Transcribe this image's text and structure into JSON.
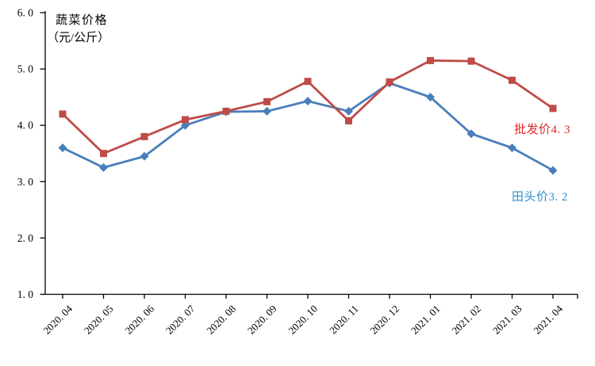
{
  "chart_data": {
    "type": "line",
    "title": "蔬菜价格（元/公斤）",
    "title_lines": [
      "蔬菜价格",
      "（元/公斤）"
    ],
    "xlabel": "",
    "ylabel": "蔬菜价格（元/公斤）",
    "categories": [
      "2020.04",
      "2020.05",
      "2020.06",
      "2020.07",
      "2020.08",
      "2020.09",
      "2020.10",
      "2020.11",
      "2020.12",
      "2021.01",
      "2021.02",
      "2021.03",
      "2021.04"
    ],
    "x_labels": [
      "2020. 04",
      "2020. 05",
      "2020. 06",
      "2020. 07",
      "2020. 08",
      "2020. 09",
      "2020. 10",
      "2020. 11",
      "2020. 12",
      "2021. 01",
      "2021. 02",
      "2021. 03",
      "2021. 04"
    ],
    "ylim": [
      1.0,
      6.0
    ],
    "ytick_values": [
      1.0,
      2.0,
      3.0,
      4.0,
      5.0,
      6.0
    ],
    "ytick_labels": [
      "1. 0",
      "2. 0",
      "3. 0",
      "4. 0",
      "5. 0",
      "6. 0"
    ],
    "grid": false,
    "legend_position": "annotations-at-line-end",
    "series": [
      {
        "name": "批发价",
        "marker": "square",
        "color": "#bf4b48",
        "label_color": "#e02525",
        "end_label": "批发价4. 3",
        "end_value": 4.3,
        "values": [
          4.2,
          3.5,
          3.8,
          4.1,
          4.25,
          4.42,
          4.78,
          4.08,
          4.77,
          5.15,
          5.14,
          4.8,
          4.3
        ]
      },
      {
        "name": "田头价",
        "marker": "diamond",
        "color": "#4a7ebb",
        "label_color": "#2e8fd0",
        "end_label": "田头价3. 2",
        "end_value": 3.2,
        "values": [
          3.6,
          3.25,
          3.45,
          4.0,
          4.24,
          4.25,
          4.43,
          4.25,
          4.75,
          4.5,
          3.85,
          3.6,
          3.2
        ]
      }
    ]
  }
}
